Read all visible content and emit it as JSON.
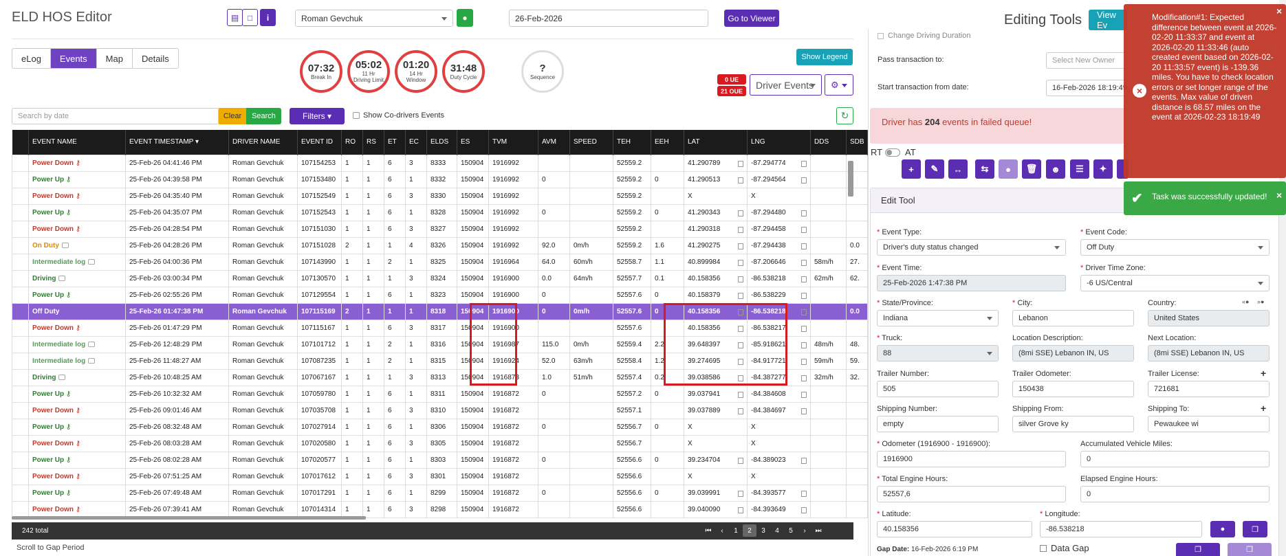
{
  "app": {
    "title": "ELD HOS Editor"
  },
  "header": {
    "driver": "Roman Gevchuk",
    "date": "26-Feb-2026",
    "go_viewer": "Go to Viewer"
  },
  "tabs": [
    {
      "label": "eLog"
    },
    {
      "label": "Events"
    },
    {
      "label": "Map"
    },
    {
      "label": "Details"
    }
  ],
  "timers": [
    {
      "value": "07:32",
      "label": "Break In"
    },
    {
      "value": "05:02",
      "label": "11 Hr Driving Limit"
    },
    {
      "value": "01:20",
      "label": "14 Hr Window"
    },
    {
      "value": "31:48",
      "label": "Duty Cycle"
    }
  ],
  "sequence": {
    "value": "?",
    "label": "Sequence"
  },
  "show_legend": "Show Legend",
  "badges": {
    "ue": "0 UE",
    "oue": "21 OUE"
  },
  "driver_events": "Driver Events",
  "search": {
    "placeholder": "Search by date",
    "clear": "Clear",
    "search": "Search",
    "filters": "Filters",
    "co_drivers": "Show Co-drivers Events"
  },
  "columns": [
    "EVENT NAME",
    "EVENT TIMESTAMP",
    "DRIVER NAME",
    "EVENT ID",
    "RO",
    "RS",
    "ET",
    "EC",
    "ELDS",
    "ES",
    "TVM",
    "AVM",
    "SPEED",
    "TEH",
    "EEH",
    "LAT",
    "LNG",
    "DDS",
    "SDB"
  ],
  "rows": [
    {
      "name": "Power Down",
      "c": "red",
      "ic": "key",
      "ts": "25-Feb-26 04:41:46 PM",
      "drv": "Roman Gevchuk",
      "id": "107154253",
      "ro": "1",
      "rs": "1",
      "et": "6",
      "ec": "3",
      "elds": "8333",
      "es": "150904",
      "tvm": "1916992",
      "avm": "",
      "spd": "",
      "teh": "52559.2",
      "eeh": "",
      "lat": "41.290789",
      "lng": "-87.294774",
      "dds": "",
      "sdb": ""
    },
    {
      "name": "Power Up",
      "c": "green",
      "ic": "key",
      "ts": "25-Feb-26 04:39:58 PM",
      "drv": "Roman Gevchuk",
      "id": "107153480",
      "ro": "1",
      "rs": "1",
      "et": "6",
      "ec": "1",
      "elds": "8332",
      "es": "150904",
      "tvm": "1916992",
      "avm": "0",
      "spd": "",
      "teh": "52559.2",
      "eeh": "0",
      "lat": "41.290513",
      "lng": "-87.294564",
      "dds": "",
      "sdb": ""
    },
    {
      "name": "Power Down",
      "c": "red",
      "ic": "key",
      "ts": "25-Feb-26 04:35:40 PM",
      "drv": "Roman Gevchuk",
      "id": "107152549",
      "ro": "1",
      "rs": "1",
      "et": "6",
      "ec": "3",
      "elds": "8330",
      "es": "150904",
      "tvm": "1916992",
      "avm": "",
      "spd": "",
      "teh": "52559.2",
      "eeh": "",
      "lat": "X",
      "lng": "X",
      "dds": "",
      "sdb": ""
    },
    {
      "name": "Power Up",
      "c": "green",
      "ic": "key",
      "ts": "25-Feb-26 04:35:07 PM",
      "drv": "Roman Gevchuk",
      "id": "107152543",
      "ro": "1",
      "rs": "1",
      "et": "6",
      "ec": "1",
      "elds": "8328",
      "es": "150904",
      "tvm": "1916992",
      "avm": "0",
      "spd": "",
      "teh": "52559.2",
      "eeh": "0",
      "lat": "41.290343",
      "lng": "-87.294480",
      "dds": "",
      "sdb": ""
    },
    {
      "name": "Power Down",
      "c": "red",
      "ic": "key",
      "ts": "25-Feb-26 04:28:54 PM",
      "drv": "Roman Gevchuk",
      "id": "107151030",
      "ro": "1",
      "rs": "1",
      "et": "6",
      "ec": "3",
      "elds": "8327",
      "es": "150904",
      "tvm": "1916992",
      "avm": "",
      "spd": "",
      "teh": "52559.2",
      "eeh": "",
      "lat": "41.290318",
      "lng": "-87.294458",
      "dds": "",
      "sdb": ""
    },
    {
      "name": "On Duty",
      "c": "orange",
      "ic": "cam",
      "ts": "25-Feb-26 04:28:26 PM",
      "drv": "Roman Gevchuk",
      "id": "107151028",
      "ro": "2",
      "rs": "1",
      "et": "1",
      "ec": "4",
      "elds": "8326",
      "es": "150904",
      "tvm": "1916992",
      "avm": "92.0",
      "spd": "0m/h",
      "teh": "52559.2",
      "eeh": "1.6",
      "lat": "41.290275",
      "lng": "-87.294438",
      "dds": "",
      "sdb": "0.0"
    },
    {
      "name": "Intermediate log",
      "c": "lg",
      "ic": "cam",
      "ts": "25-Feb-26 04:00:36 PM",
      "drv": "Roman Gevchuk",
      "id": "107143990",
      "ro": "1",
      "rs": "1",
      "et": "2",
      "ec": "1",
      "elds": "8325",
      "es": "150904",
      "tvm": "1916964",
      "avm": "64.0",
      "spd": "60m/h",
      "teh": "52558.7",
      "eeh": "1.1",
      "lat": "40.899984",
      "lng": "-87.206646",
      "dds": "58m/h",
      "sdb": "27."
    },
    {
      "name": "Driving",
      "c": "green",
      "ic": "cam",
      "ts": "25-Feb-26 03:00:34 PM",
      "drv": "Roman Gevchuk",
      "id": "107130570",
      "ro": "1",
      "rs": "1",
      "et": "1",
      "ec": "3",
      "elds": "8324",
      "es": "150904",
      "tvm": "1916900",
      "avm": "0.0",
      "spd": "64m/h",
      "teh": "52557.7",
      "eeh": "0.1",
      "lat": "40.158356",
      "lng": "-86.538218",
      "dds": "62m/h",
      "sdb": "62."
    },
    {
      "name": "Power Up",
      "c": "green",
      "ic": "key",
      "ts": "25-Feb-26 02:55:26 PM",
      "drv": "Roman Gevchuk",
      "id": "107129554",
      "ro": "1",
      "rs": "1",
      "et": "6",
      "ec": "1",
      "elds": "8323",
      "es": "150904",
      "tvm": "1916900",
      "avm": "0",
      "spd": "",
      "teh": "52557.6",
      "eeh": "0",
      "lat": "40.158379",
      "lng": "-86.538229",
      "dds": "",
      "sdb": ""
    },
    {
      "name": "Off Duty",
      "c": "sel",
      "ic": "",
      "ts": "25-Feb-26 01:47:38 PM",
      "drv": "Roman Gevchuk",
      "id": "107115169",
      "ro": "2",
      "rs": "1",
      "et": "1",
      "ec": "1",
      "elds": "8318",
      "es": "150904",
      "tvm": "1916900",
      "avm": "0",
      "spd": "0m/h",
      "teh": "52557.6",
      "eeh": "0",
      "lat": "40.158356",
      "lng": "-86.538218",
      "dds": "",
      "sdb": "0.0"
    },
    {
      "name": "Power Down",
      "c": "red",
      "ic": "key",
      "ts": "25-Feb-26 01:47:29 PM",
      "drv": "Roman Gevchuk",
      "id": "107115167",
      "ro": "1",
      "rs": "1",
      "et": "6",
      "ec": "3",
      "elds": "8317",
      "es": "150904",
      "tvm": "1916900",
      "avm": "",
      "spd": "",
      "teh": "52557.6",
      "eeh": "",
      "lat": "40.158356",
      "lng": "-86.538217",
      "dds": "",
      "sdb": ""
    },
    {
      "name": "Intermediate log",
      "c": "lg",
      "ic": "cam",
      "ts": "25-Feb-26 12:48:29 PM",
      "drv": "Roman Gevchuk",
      "id": "107101712",
      "ro": "1",
      "rs": "1",
      "et": "2",
      "ec": "1",
      "elds": "8316",
      "es": "150904",
      "tvm": "1916987",
      "avm": "115.0",
      "spd": "0m/h",
      "teh": "52559.4",
      "eeh": "2.2",
      "lat": "39.648397",
      "lng": "-85.918621",
      "dds": "48m/h",
      "sdb": "48."
    },
    {
      "name": "Intermediate log",
      "c": "lg",
      "ic": "cam",
      "ts": "25-Feb-26 11:48:27 AM",
      "drv": "Roman Gevchuk",
      "id": "107087235",
      "ro": "1",
      "rs": "1",
      "et": "2",
      "ec": "1",
      "elds": "8315",
      "es": "150904",
      "tvm": "1916924",
      "avm": "52.0",
      "spd": "63m/h",
      "teh": "52558.4",
      "eeh": "1.2",
      "lat": "39.274695",
      "lng": "-84.917721",
      "dds": "59m/h",
      "sdb": "59."
    },
    {
      "name": "Driving",
      "c": "green",
      "ic": "cam",
      "ts": "25-Feb-26 10:48:25 AM",
      "drv": "Roman Gevchuk",
      "id": "107067167",
      "ro": "1",
      "rs": "1",
      "et": "1",
      "ec": "3",
      "elds": "8313",
      "es": "150904",
      "tvm": "1916873",
      "avm": "1.0",
      "spd": "51m/h",
      "teh": "52557.4",
      "eeh": "0.2",
      "lat": "39.038586",
      "lng": "-84.387277",
      "dds": "32m/h",
      "sdb": "32."
    },
    {
      "name": "Power Up",
      "c": "green",
      "ic": "key",
      "ts": "25-Feb-26 10:32:32 AM",
      "drv": "Roman Gevchuk",
      "id": "107059780",
      "ro": "1",
      "rs": "1",
      "et": "6",
      "ec": "1",
      "elds": "8311",
      "es": "150904",
      "tvm": "1916872",
      "avm": "0",
      "spd": "",
      "teh": "52557.2",
      "eeh": "0",
      "lat": "39.037941",
      "lng": "-84.384608",
      "dds": "",
      "sdb": ""
    },
    {
      "name": "Power Down",
      "c": "red",
      "ic": "key",
      "ts": "25-Feb-26 09:01:46 AM",
      "drv": "Roman Gevchuk",
      "id": "107035708",
      "ro": "1",
      "rs": "1",
      "et": "6",
      "ec": "3",
      "elds": "8310",
      "es": "150904",
      "tvm": "1916872",
      "avm": "",
      "spd": "",
      "teh": "52557.1",
      "eeh": "",
      "lat": "39.037889",
      "lng": "-84.384697",
      "dds": "",
      "sdb": ""
    },
    {
      "name": "Power Up",
      "c": "green",
      "ic": "key",
      "ts": "25-Feb-26 08:32:48 AM",
      "drv": "Roman Gevchuk",
      "id": "107027914",
      "ro": "1",
      "rs": "1",
      "et": "6",
      "ec": "1",
      "elds": "8306",
      "es": "150904",
      "tvm": "1916872",
      "avm": "0",
      "spd": "",
      "teh": "52556.7",
      "eeh": "0",
      "lat": "X",
      "lng": "X",
      "dds": "",
      "sdb": ""
    },
    {
      "name": "Power Down",
      "c": "red",
      "ic": "key",
      "ts": "25-Feb-26 08:03:28 AM",
      "drv": "Roman Gevchuk",
      "id": "107020580",
      "ro": "1",
      "rs": "1",
      "et": "6",
      "ec": "3",
      "elds": "8305",
      "es": "150904",
      "tvm": "1916872",
      "avm": "",
      "spd": "",
      "teh": "52556.7",
      "eeh": "",
      "lat": "X",
      "lng": "X",
      "dds": "",
      "sdb": ""
    },
    {
      "name": "Power Up",
      "c": "green",
      "ic": "key",
      "ts": "25-Feb-26 08:02:28 AM",
      "drv": "Roman Gevchuk",
      "id": "107020577",
      "ro": "1",
      "rs": "1",
      "et": "6",
      "ec": "1",
      "elds": "8303",
      "es": "150904",
      "tvm": "1916872",
      "avm": "0",
      "spd": "",
      "teh": "52556.6",
      "eeh": "0",
      "lat": "39.234704",
      "lng": "-84.389023",
      "dds": "",
      "sdb": ""
    },
    {
      "name": "Power Down",
      "c": "red",
      "ic": "key",
      "ts": "25-Feb-26 07:51:25 AM",
      "drv": "Roman Gevchuk",
      "id": "107017612",
      "ro": "1",
      "rs": "1",
      "et": "6",
      "ec": "3",
      "elds": "8301",
      "es": "150904",
      "tvm": "1916872",
      "avm": "",
      "spd": "",
      "teh": "52556.6",
      "eeh": "",
      "lat": "X",
      "lng": "X",
      "dds": "",
      "sdb": ""
    },
    {
      "name": "Power Up",
      "c": "green",
      "ic": "key",
      "ts": "25-Feb-26 07:49:48 AM",
      "drv": "Roman Gevchuk",
      "id": "107017291",
      "ro": "1",
      "rs": "1",
      "et": "6",
      "ec": "1",
      "elds": "8299",
      "es": "150904",
      "tvm": "1916872",
      "avm": "0",
      "spd": "",
      "teh": "52556.6",
      "eeh": "0",
      "lat": "39.039991",
      "lng": "-84.393577",
      "dds": "",
      "sdb": ""
    },
    {
      "name": "Power Down",
      "c": "red",
      "ic": "key",
      "ts": "25-Feb-26 07:39:41 AM",
      "drv": "Roman Gevchuk",
      "id": "107014314",
      "ro": "1",
      "rs": "1",
      "et": "6",
      "ec": "3",
      "elds": "8298",
      "es": "150904",
      "tvm": "1916872",
      "avm": "",
      "spd": "",
      "teh": "52556.6",
      "eeh": "",
      "lat": "39.040090",
      "lng": "-84.393649",
      "dds": "",
      "sdb": ""
    }
  ],
  "footer": {
    "total": "242 total",
    "pages": [
      "1",
      "2",
      "3",
      "4",
      "5"
    ],
    "current": "2",
    "scroll_gap": "Scroll to Gap Period"
  },
  "editing": {
    "title": "Editing Tools",
    "view_btn": "View Ev",
    "change_driving": "Change Driving Duration",
    "pass_label": "Pass transaction to:",
    "pass_placeholder": "Select New Owner",
    "start_label": "Start transaction from date:",
    "start_value": "16-Feb-2026 18:19:49",
    "failed_pre": "Driver has ",
    "failed_count": "204",
    "failed_post": " events in failed queue!",
    "rt": "RT",
    "at": "AT",
    "edit_tool": "Edit Tool"
  },
  "form": {
    "event_type_label": "Event Type:",
    "event_type": "Driver's duty status changed",
    "event_code_label": "Event Code:",
    "event_code": "Off Duty",
    "event_time_label": "Event Time:",
    "event_time": "25-Feb-2026 1:47:38 PM",
    "tz_label": "Driver Time Zone:",
    "tz": "-6 US/Central",
    "state_label": "State/Province:",
    "state": "Indiana",
    "city_label": "City:",
    "city": "Lebanon",
    "country_label": "Country:",
    "country": "United States",
    "truck_label": "Truck:",
    "truck": "88",
    "locdesc_label": "Location Description:",
    "locdesc": "(8mi SSE) Lebanon IN, US",
    "nextloc_label": "Next Location:",
    "nextloc": "(8mi SSE) Lebanon IN, US",
    "trailer_num_label": "Trailer Number:",
    "trailer_num": "505",
    "trailer_odo_label": "Trailer Odometer:",
    "trailer_odo": "150438",
    "trailer_lic_label": "Trailer License:",
    "trailer_lic": "721681",
    "ship_num_label": "Shipping Number:",
    "ship_num": "empty",
    "ship_from_label": "Shipping From:",
    "ship_from": "silver Grove ky",
    "ship_to_label": "Shipping To:",
    "ship_to": "Pewaukee wi",
    "odo_label": "Odometer (1916900 - 1916900):",
    "odo": "1916900",
    "acc_label": "Accumulated Vehicle Miles:",
    "acc": "0",
    "teh_label": "Total Engine Hours:",
    "teh": "52557,6",
    "eeh_label": "Elapsed Engine Hours:",
    "eeh": "0",
    "lat_label": "Latitude:",
    "lat": "40.158356",
    "lng_label": "Longitude:",
    "lng": "-86.538218",
    "gap_label": "Gap Date:",
    "gap": "16-Feb-2026 6:19 PM",
    "data_gap": "Data Gap"
  },
  "toasts": {
    "error": "Modification#1: Expected difference between event at 2026-02-20 11:33:37 and event at 2026-02-20 11:33:46 (auto created event based on 2026-02-20 11:33:57 event) is -139.36 miles. You have to check location errors or set longer range of the events. Max value of driven distance is 68.57 miles on the event at 2026-02-23 18:19:49",
    "success": "Task was successfully updated!"
  },
  "colors": {
    "primary": "#5b2db3",
    "selected_row": "#8a5fd1",
    "error": "#c0392b",
    "success": "#3aa845",
    "teal": "#17a2b8"
  }
}
